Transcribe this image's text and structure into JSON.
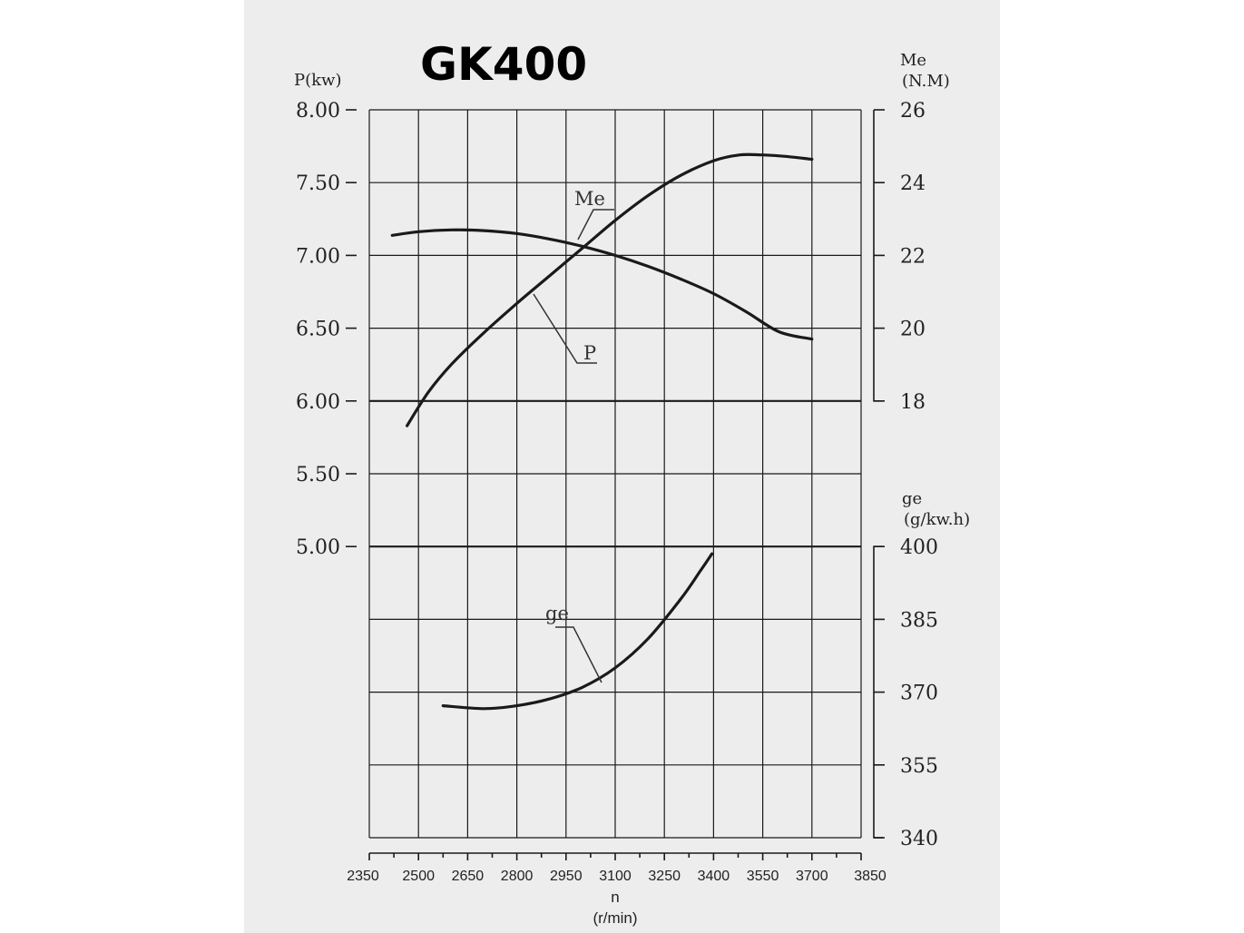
{
  "chart_data": {
    "type": "line",
    "title": "GK400",
    "xlabel": "n",
    "xunit": "(r/min)",
    "x_ticks": [
      "2350",
      "2500",
      "2650",
      "2800",
      "2950",
      "3100",
      "3250",
      "3400",
      "3550",
      "3700",
      "3850"
    ],
    "xlim": [
      2350,
      3850
    ],
    "grid": true,
    "axes": {
      "P": {
        "label": "P(kw)",
        "ticks": [
          "8.00",
          "7.50",
          "7.00",
          "6.50",
          "6.00",
          "5.50",
          "5.00"
        ],
        "ylim": [
          5.0,
          8.0
        ]
      },
      "Me": {
        "label_line1": "Me",
        "label_line2": "(N.M)",
        "ticks": [
          "26",
          "24",
          "22",
          "20",
          "18"
        ],
        "ylim": [
          18,
          26
        ]
      },
      "ge": {
        "label_line1": "ge",
        "label_line2": "(g/kw.h)",
        "ticks": [
          "400",
          "385",
          "370",
          "355",
          "340"
        ],
        "ylim": [
          340,
          400
        ]
      }
    },
    "series": [
      {
        "name": "P",
        "axis": "P",
        "x": [
          2465,
          2530,
          2600,
          2700,
          2800,
          2900,
          3000,
          3100,
          3200,
          3300,
          3400,
          3480,
          3550,
          3620,
          3700
        ],
        "y": [
          5.83,
          6.06,
          6.25,
          6.47,
          6.67,
          6.86,
          7.05,
          7.24,
          7.41,
          7.55,
          7.65,
          7.69,
          7.69,
          7.68,
          7.66
        ]
      },
      {
        "name": "Me",
        "axis": "Me",
        "x": [
          2420,
          2500,
          2600,
          2700,
          2800,
          2900,
          3000,
          3100,
          3200,
          3300,
          3400,
          3500,
          3600,
          3700
        ],
        "y": [
          22.55,
          22.65,
          22.7,
          22.68,
          22.6,
          22.45,
          22.25,
          22.0,
          21.7,
          21.35,
          20.95,
          20.45,
          19.9,
          19.7
        ]
      },
      {
        "name": "ge",
        "axis": "ge",
        "x": [
          2575,
          2700,
          2800,
          2900,
          3000,
          3100,
          3200,
          3300,
          3360,
          3395
        ],
        "y": [
          367.2,
          366.6,
          367.2,
          368.6,
          371.0,
          375.0,
          381.0,
          389.2,
          395.0,
          398.5
        ]
      }
    ],
    "curve_labels": {
      "P": "P",
      "Me": "Me",
      "ge": "ge"
    }
  }
}
